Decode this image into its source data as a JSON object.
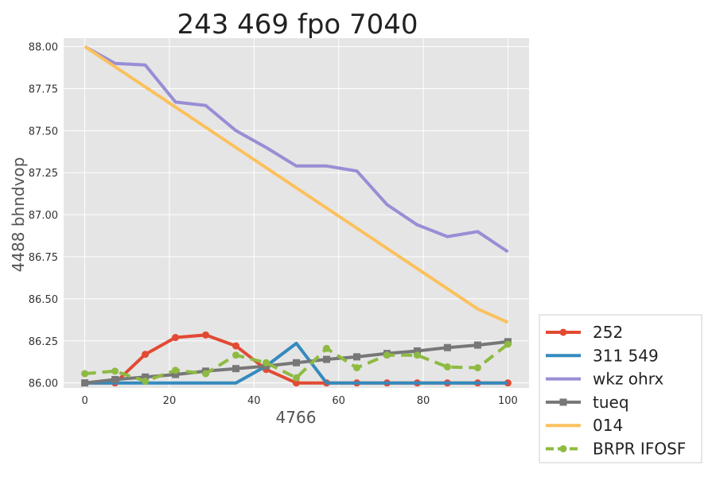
{
  "chart_data": {
    "type": "line",
    "title": "243 469 fpo 7040",
    "xlabel": "4766",
    "ylabel": "4488 bhndvop",
    "xlim": [
      -5,
      105
    ],
    "ylim": [
      85.97,
      88.05
    ],
    "x_ticks": [
      "0",
      "20",
      "40",
      "60",
      "80",
      "100"
    ],
    "y_ticks": [
      "86.00",
      "86.25",
      "86.50",
      "86.75",
      "87.00",
      "87.25",
      "87.50",
      "87.75",
      "88.00"
    ],
    "grid": true,
    "legend_position": "bottom-right",
    "x": [
      0,
      7.14,
      14.29,
      21.43,
      28.57,
      35.71,
      42.86,
      50,
      57.14,
      64.29,
      71.43,
      78.57,
      85.71,
      92.86,
      100
    ],
    "series": [
      {
        "name": "252",
        "color": "#e24a33",
        "marker": "circle",
        "dash": "solid",
        "values": [
          86.0,
          86.0,
          86.17,
          86.27,
          86.285,
          86.22,
          86.08,
          86.0,
          86.0,
          86.0,
          86.0,
          86.0,
          86.0,
          86.0,
          86.0
        ]
      },
      {
        "name": "311 549",
        "color": "#348abd",
        "marker": "none",
        "dash": "solid",
        "values": [
          86.0,
          86.0,
          86.0,
          86.0,
          86.0,
          86.0,
          86.1,
          86.235,
          86.0,
          86.0,
          86.0,
          86.0,
          86.0,
          86.0,
          86.0
        ]
      },
      {
        "name": "wkz ohrx",
        "color": "#988ed5",
        "marker": "none",
        "dash": "solid",
        "values": [
          88.0,
          87.9,
          87.89,
          87.67,
          87.65,
          87.5,
          87.4,
          87.29,
          87.29,
          87.26,
          87.06,
          86.94,
          86.87,
          86.9,
          86.78
        ]
      },
      {
        "name": "tueq",
        "color": "#777777",
        "marker": "square",
        "dash": "solid",
        "values": [
          86.0,
          86.02,
          86.035,
          86.05,
          86.07,
          86.085,
          86.1,
          86.12,
          86.14,
          86.155,
          86.175,
          86.19,
          86.21,
          86.225,
          86.245
        ]
      },
      {
        "name": "014",
        "color": "#fbc15e",
        "marker": "none",
        "dash": "solid",
        "values": [
          88.0,
          87.88,
          87.76,
          87.64,
          87.52,
          87.4,
          87.28,
          87.16,
          87.04,
          86.92,
          86.8,
          86.68,
          86.56,
          86.44,
          86.36
        ]
      },
      {
        "name": "BRPR IFOSF",
        "color": "#8eba42",
        "marker": "circle",
        "dash": "dashed",
        "values": [
          86.055,
          86.07,
          86.01,
          86.075,
          86.055,
          86.165,
          86.12,
          86.03,
          86.205,
          86.09,
          86.165,
          86.165,
          86.095,
          86.09,
          86.23
        ]
      }
    ]
  }
}
